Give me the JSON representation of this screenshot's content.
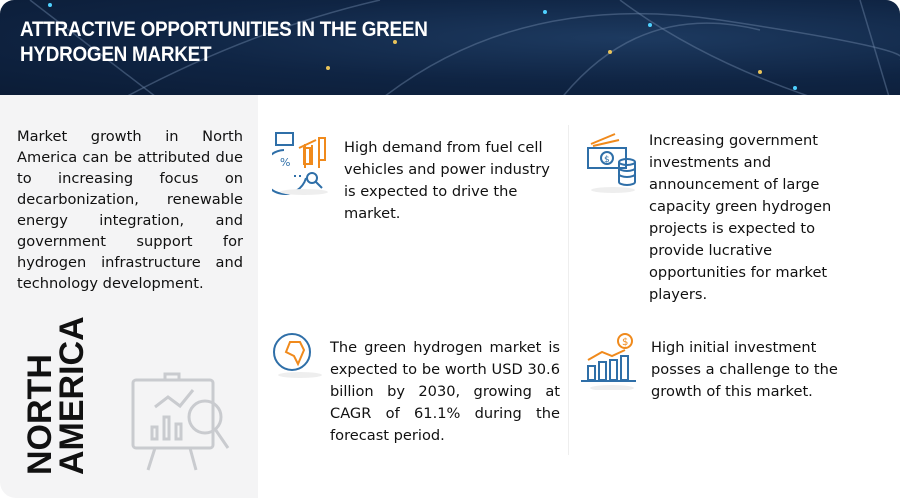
{
  "header": {
    "title_line1": "ATTRACTIVE OPPORTUNITIES IN THE GREEN",
    "title_line2": "HYDROGEN MARKET"
  },
  "left_panel": {
    "description": "Market growth in North America can be attributed due to increasing focus on decarbonization, renewable energy integration, and government support for hydrogen infrastructure and technology development.",
    "region_line1": "NORTH",
    "region_line2": "AMERICA"
  },
  "cards": [
    {
      "icon": "analytics-icon",
      "text": "High demand from fuel cell vehicles and power industry is expected to drive the market."
    },
    {
      "icon": "money-icon",
      "text": "Increasing government investments and announcement of large capacity green hydrogen projects is expected to provide lucrative opportunities for market players."
    },
    {
      "icon": "globe-icon",
      "text": "The green hydrogen market is expected to be worth USD 30.6 billion by 2030, growing at CAGR of 61.1% during the forecast period."
    },
    {
      "icon": "growth-chart-icon",
      "text": "High initial investment posses a challenge to the growth of this market."
    }
  ],
  "colors": {
    "header_bg": "#0f2443",
    "accent_blue": "#2f6fa8",
    "accent_orange": "#f08a1c",
    "panel_bg": "#f4f4f5"
  }
}
